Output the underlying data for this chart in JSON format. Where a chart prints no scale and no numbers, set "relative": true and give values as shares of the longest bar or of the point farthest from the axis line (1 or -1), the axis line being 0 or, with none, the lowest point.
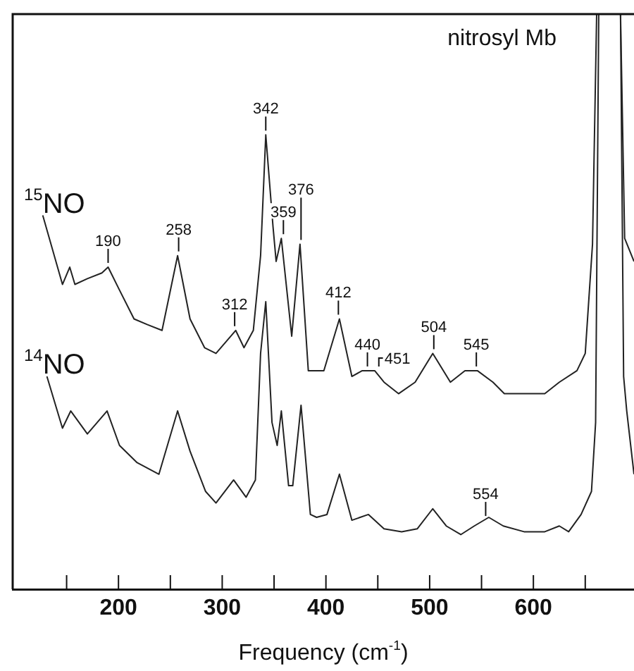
{
  "chart_data": {
    "type": "line",
    "title": "nitrosyl Mb",
    "xlabel": "Frequency (cm$^{-1}$)",
    "relative": true,
    "xlim": [
      98,
      697
    ],
    "xticks": [
      {
        "value": 150,
        "label": null
      },
      200,
      {
        "value": 250,
        "label": null
      },
      300,
      {
        "value": 350,
        "label": null
      },
      {
        "value": 400,
        "label": "400"
      },
      {
        "value": 450,
        "label": null
      },
      500,
      {
        "value": 550,
        "label": null
      },
      600,
      {
        "value": 650,
        "label": null
      }
    ],
    "grid": false,
    "legend": false,
    "marker": "none",
    "line_style": "solid",
    "series": [
      {
        "name": "$^{15}$NO",
        "color": "#222222",
        "x": [
          127,
          146,
          153,
          158,
          170,
          184,
          190,
          201,
          215,
          228,
          242,
          257,
          269,
          283,
          294,
          313,
          321,
          330,
          337,
          342,
          349,
          352,
          357,
          367,
          375,
          383,
          398,
          413,
          425,
          435,
          447,
          456,
          470,
          486,
          503,
          520,
          534,
          546,
          561,
          572,
          591,
          611,
          625,
          642,
          650,
          657,
          661,
          684,
          688,
          697
        ],
        "values": [
          0.65,
          0.53,
          0.56,
          0.53,
          0.54,
          0.55,
          0.56,
          0.52,
          0.47,
          0.46,
          0.45,
          0.58,
          0.47,
          0.42,
          0.41,
          0.45,
          0.42,
          0.45,
          0.58,
          0.79,
          0.63,
          0.57,
          0.61,
          0.44,
          0.6,
          0.38,
          0.38,
          0.47,
          0.37,
          0.38,
          0.38,
          0.36,
          0.34,
          0.36,
          0.41,
          0.36,
          0.38,
          0.38,
          0.36,
          0.34,
          0.34,
          0.34,
          0.36,
          0.38,
          0.41,
          0.6,
          1,
          1,
          0.61,
          0.57
        ]
      },
      {
        "name": "$^{14}$NO",
        "color": "#222222",
        "x": [
          131,
          146,
          154,
          170,
          189,
          201,
          218,
          239,
          257,
          269,
          284,
          294,
          311,
          323,
          332,
          337,
          342,
          348,
          353,
          357,
          364,
          368,
          376,
          385,
          391,
          401,
          413,
          425,
          441,
          456,
          473,
          488,
          503,
          516,
          530,
          543,
          557,
          571,
          591,
          611,
          625,
          634,
          646,
          656,
          660,
          663,
          684,
          687,
          690,
          697
        ],
        "values": [
          0.37,
          0.28,
          0.31,
          0.27,
          0.31,
          0.25,
          0.22,
          0.2,
          0.31,
          0.24,
          0.17,
          0.15,
          0.19,
          0.16,
          0.19,
          0.41,
          0.5,
          0.29,
          0.25,
          0.31,
          0.18,
          0.18,
          0.32,
          0.13,
          0.125,
          0.13,
          0.2,
          0.12,
          0.13,
          0.105,
          0.1,
          0.105,
          0.14,
          0.11,
          0.095,
          0.11,
          0.125,
          0.11,
          0.1,
          0.1,
          0.11,
          0.1,
          0.13,
          0.17,
          0.29,
          1,
          1,
          0.37,
          0.31,
          0.2
        ]
      }
    ],
    "annotations": [
      {
        "text": "190",
        "x": 190,
        "y": 0.56
      },
      {
        "text": "258",
        "x": 258,
        "y": 0.58
      },
      {
        "text": "312",
        "x": 312,
        "y": 0.45
      },
      {
        "text": "342",
        "x": 342,
        "y": 0.79
      },
      {
        "text": "359",
        "x": 359,
        "y": 0.61
      },
      {
        "text": "376",
        "x": 376,
        "y": 0.6
      },
      {
        "text": "412",
        "x": 412,
        "y": 0.47
      },
      {
        "text": "440",
        "x": 440,
        "y": 0.38
      },
      {
        "text": "451",
        "x": 451,
        "y": 0.38
      },
      {
        "text": "504",
        "x": 504,
        "y": 0.41
      },
      {
        "text": "545",
        "x": 545,
        "y": 0.38
      },
      {
        "text": "554",
        "x": 554,
        "y": 0.12
      }
    ]
  }
}
